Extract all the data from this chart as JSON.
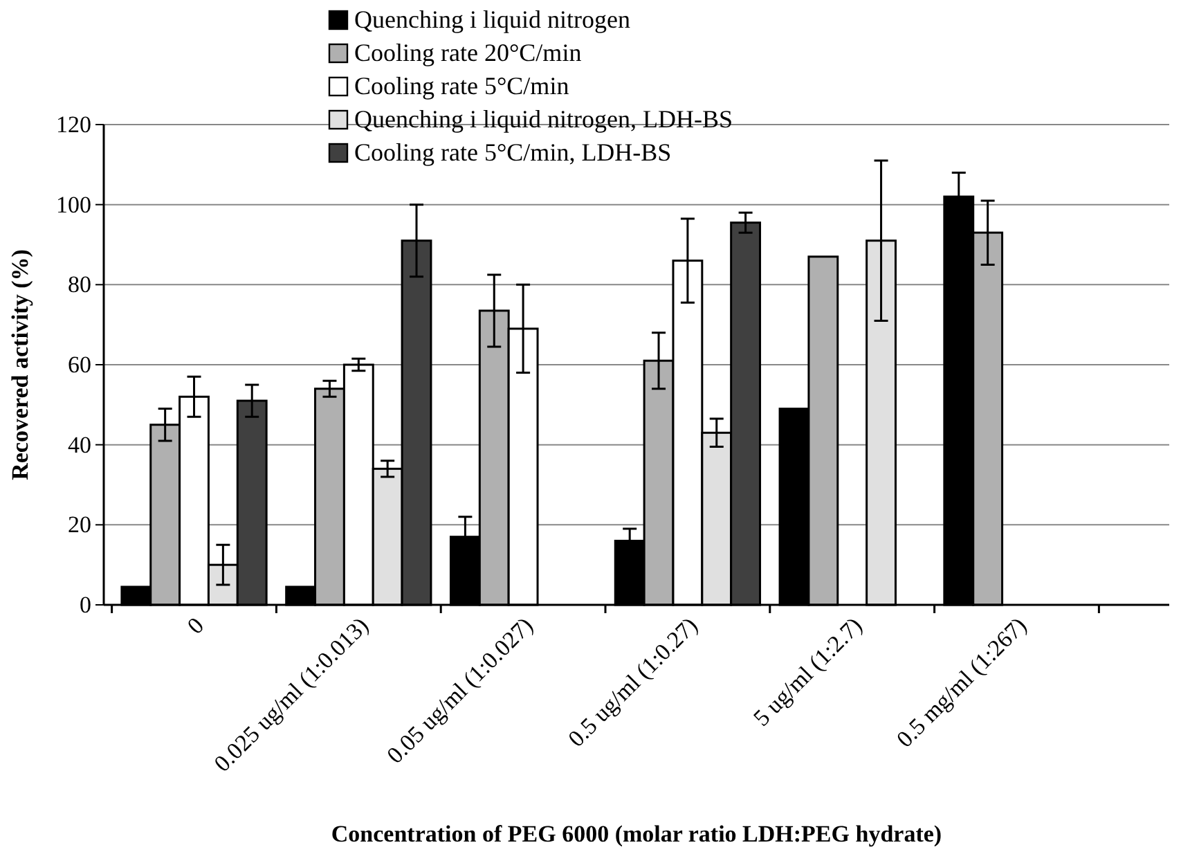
{
  "chart_data": {
    "type": "bar",
    "xlabel": "Concentration of PEG 6000 (molar ratio LDH:PEG hydrate)",
    "ylabel": "Recovered activity (%)",
    "categories": [
      "0",
      "0.025 ug/ml (1:0.013)",
      "0.05 ug/ml (1:0.027)",
      "0.5 ug/ml (1:0.27)",
      "5 ug/ml (1:2.7)",
      "0.5 mg/ml (1:267)"
    ],
    "series": [
      {
        "name": "Quenching i liquid nitrogen",
        "color": "#000000",
        "values": [
          4.5,
          4.5,
          17,
          16,
          49,
          102
        ],
        "errors": [
          null,
          null,
          5,
          3,
          null,
          6
        ]
      },
      {
        "name": "Cooling rate 20°C/min",
        "color": "#b0b0b0",
        "values": [
          45,
          54,
          73.5,
          61,
          87,
          93
        ],
        "errors": [
          4,
          2,
          9,
          7,
          null,
          8
        ]
      },
      {
        "name": "Cooling rate 5°C/min",
        "color": "#ffffff",
        "values": [
          52,
          60,
          69,
          86,
          null,
          null
        ],
        "errors": [
          5,
          1.5,
          11,
          10.5,
          null,
          null
        ]
      },
      {
        "name": "Quenching i liquid nitrogen, LDH-BS",
        "color": "#e0e0e0",
        "values": [
          10,
          34,
          null,
          43,
          91,
          null
        ],
        "errors": [
          5,
          2,
          null,
          3.5,
          20,
          null
        ]
      },
      {
        "name": "Cooling rate 5°C/min, LDH-BS",
        "color": "#404040",
        "values": [
          51,
          91,
          null,
          95.5,
          null,
          null
        ],
        "errors": [
          4,
          9,
          null,
          2.5,
          null,
          null
        ]
      }
    ],
    "ylim": [
      0,
      120
    ],
    "yticks": [
      0,
      20,
      40,
      60,
      80,
      100,
      120
    ],
    "grid": "y",
    "legend": "top left"
  }
}
